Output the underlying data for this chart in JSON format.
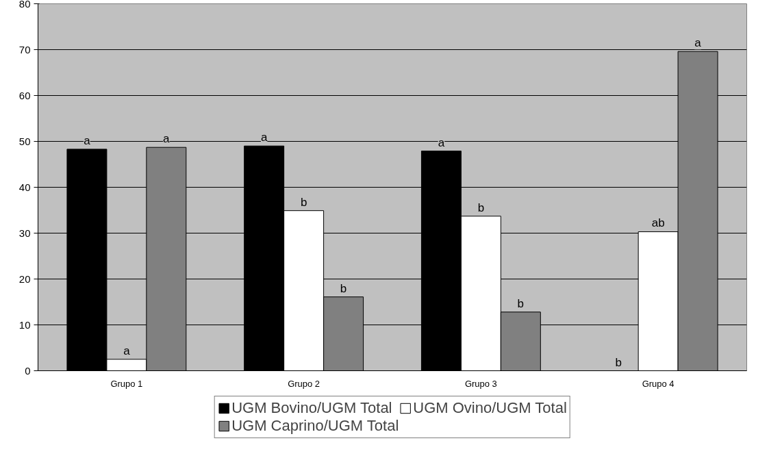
{
  "chart_data": {
    "type": "bar",
    "categories": [
      "Grupo 1",
      "Grupo 2",
      "Grupo 3",
      "Grupo 4"
    ],
    "series": [
      {
        "name": "UGM Bovino/UGM Total",
        "color": "#000000",
        "values": [
          48.3,
          49.0,
          47.9,
          0
        ],
        "value_labels": [
          "a",
          "a",
          "a",
          "b"
        ]
      },
      {
        "name": "UGM Ovino/UGM Total",
        "color": "#ffffff",
        "values": [
          2.5,
          34.9,
          33.7,
          30.3
        ],
        "value_labels": [
          "a",
          "b",
          "b",
          "ab"
        ]
      },
      {
        "name": "UGM Caprino/UGM Total",
        "color": "#808080",
        "values": [
          48.7,
          16.1,
          12.8,
          69.6
        ],
        "value_labels": [
          "a",
          "b",
          "b",
          "a"
        ]
      }
    ],
    "ylim": [
      0,
      80
    ],
    "yticks": [
      0,
      10,
      20,
      30,
      40,
      50,
      60,
      70,
      80
    ],
    "grid": "y",
    "legend": "bottom"
  }
}
